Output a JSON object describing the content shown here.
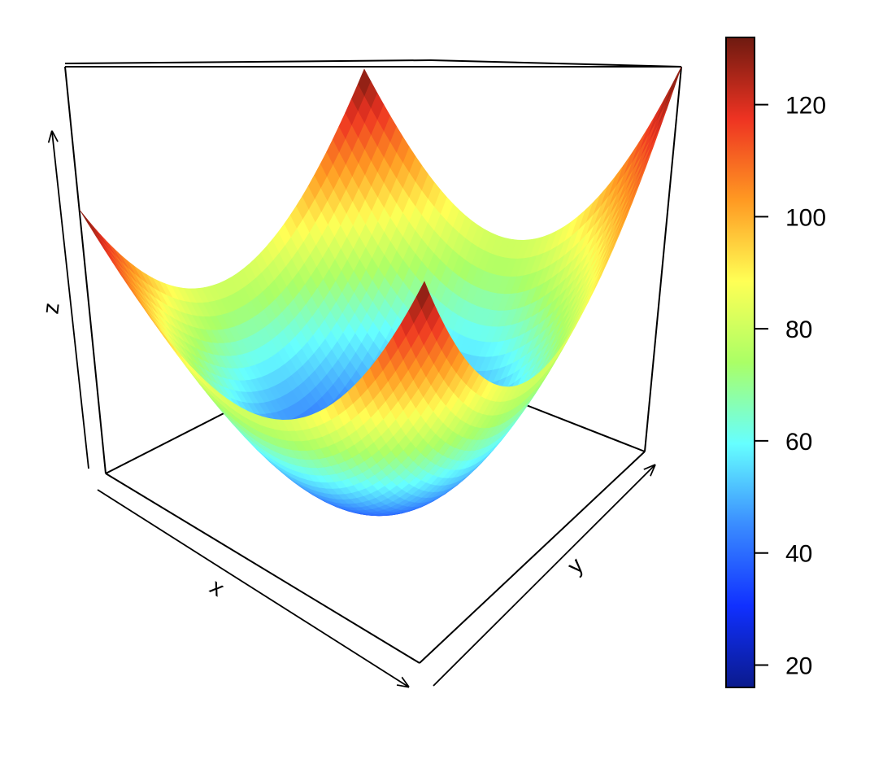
{
  "chart_data": {
    "type": "surface3d",
    "description": "",
    "x_range": [
      -5,
      5
    ],
    "y_range": [
      -5,
      5
    ],
    "z_range": [
      16,
      132
    ],
    "surface": "z = 2*(x^2 + y^2) + 32",
    "surface_z_at": {
      "center": 32,
      "corner_near": 132,
      "corner_far": 132,
      "corner_left": 132,
      "corner_right": 132
    },
    "xlabel": "x",
    "ylabel": "y",
    "zlabel": "z",
    "colorbar": {
      "ticks": [
        20,
        40,
        60,
        80,
        100,
        120
      ],
      "tick_labels": [
        "20",
        "40",
        "60",
        "80",
        "100",
        "120"
      ],
      "range": [
        16,
        132
      ],
      "palette_stops": [
        "#0a1a8c",
        "#1030ff",
        "#3a8cff",
        "#66ffff",
        "#aaff66",
        "#ffff55",
        "#ff9922",
        "#ee3322",
        "#6e1a10"
      ]
    }
  }
}
